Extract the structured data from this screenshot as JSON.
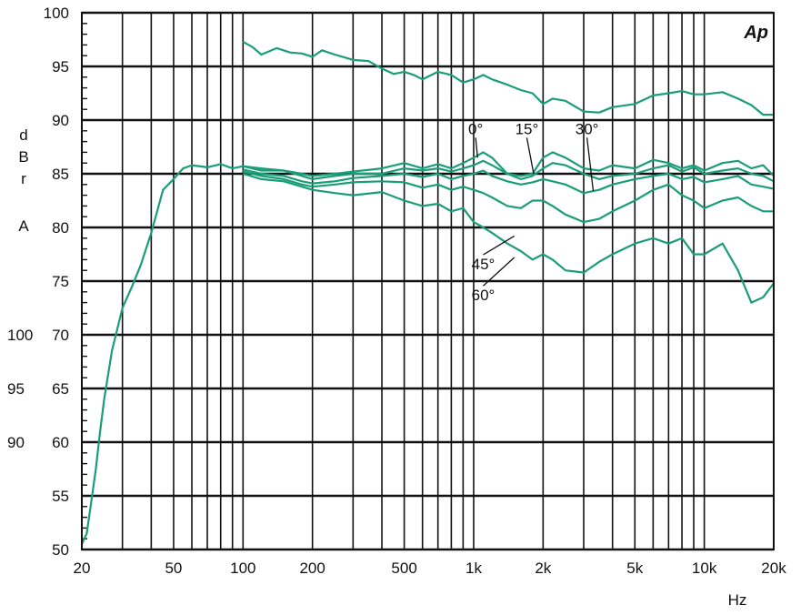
{
  "chart_data": {
    "type": "line",
    "logo_text": "Ap",
    "xlabel": "Hz",
    "ylabel_chars": [
      "d",
      "B",
      "r",
      "A"
    ],
    "x_scale": "log",
    "xlim": [
      20,
      20000
    ],
    "ylim": [
      50,
      100
    ],
    "grid": true,
    "x_tick_values": [
      20,
      50,
      100,
      200,
      500,
      1000,
      2000,
      5000,
      10000,
      20000
    ],
    "x_tick_labels": [
      "20",
      "50",
      "100",
      "200",
      "500",
      "1k",
      "2k",
      "5k",
      "10k",
      "20k"
    ],
    "y_tick_values": [
      50,
      55,
      60,
      65,
      70,
      75,
      80,
      85,
      90,
      95,
      100
    ],
    "y_tick_labels": [
      "50",
      "55",
      "60",
      "65",
      "70",
      "75",
      "80",
      "85",
      "90",
      "95",
      "100"
    ],
    "secondary_y_tick_values": [
      60,
      65,
      70
    ],
    "secondary_y_tick_labels": [
      "90",
      "95",
      "100"
    ],
    "color": "#1a9e78",
    "annotations": [
      {
        "text": "0°",
        "x": 1020,
        "y": 88.7
      },
      {
        "text": "15°",
        "x": 1700,
        "y": 88.7
      },
      {
        "text": "30°",
        "x": 3100,
        "y": 88.7
      },
      {
        "text": "45°",
        "x": 1100,
        "y": 76.1
      },
      {
        "text": "60°",
        "x": 1100,
        "y": 73.2
      }
    ],
    "series": [
      {
        "name": "0°",
        "x": [
          20,
          21,
          22,
          23,
          24,
          25,
          27,
          30,
          33,
          36,
          40,
          45,
          50,
          55,
          60,
          70,
          80,
          90,
          100,
          120,
          150,
          180,
          200,
          250,
          300,
          400,
          500,
          600,
          700,
          800,
          900,
          1000,
          1100,
          1200,
          1400,
          1600,
          1800,
          2000,
          2200,
          2500,
          3000,
          3500,
          4000,
          5000,
          6000,
          7000,
          8000,
          9000,
          10000,
          12000,
          14000,
          16000,
          18000,
          20000
        ],
        "y": [
          50.5,
          51.5,
          54.5,
          57.5,
          61,
          64,
          68.5,
          72.5,
          74.5,
          76.5,
          79.5,
          83.5,
          84.5,
          85.5,
          85.8,
          85.6,
          85.9,
          85.5,
          85.7,
          85.5,
          85.3,
          85,
          84.8,
          85,
          85.2,
          85.5,
          86,
          85.5,
          85.9,
          85.5,
          86,
          86.5,
          87,
          86.5,
          85,
          84.8,
          85,
          86.5,
          87,
          86.5,
          85.5,
          85.3,
          85.8,
          85.5,
          86.3,
          86,
          85.5,
          85.8,
          85.3,
          86,
          86.2,
          85.5,
          85.8,
          84.8
        ]
      },
      {
        "name": "15°",
        "x": [
          100,
          120,
          150,
          180,
          200,
          250,
          300,
          400,
          500,
          600,
          700,
          800,
          900,
          1000,
          1100,
          1200,
          1400,
          1600,
          1800,
          2000,
          2200,
          2500,
          3000,
          3500,
          4000,
          5000,
          6000,
          7000,
          8000,
          9000,
          10000,
          12000,
          14000,
          16000,
          18000,
          20000
        ],
        "y": [
          85.7,
          85.3,
          85.3,
          84.8,
          84.5,
          84.8,
          85,
          85,
          85.5,
          85.3,
          85.5,
          85.2,
          85.5,
          85.8,
          86.2,
          85.8,
          85,
          84.5,
          84.8,
          85.5,
          86,
          85.8,
          85,
          84.5,
          84.8,
          85,
          85.5,
          85.8,
          85.2,
          85.6,
          85,
          85.3,
          85.5,
          85,
          84.8,
          84.3
        ]
      },
      {
        "name": "30°",
        "x": [
          100,
          120,
          150,
          180,
          200,
          250,
          300,
          400,
          500,
          600,
          700,
          800,
          900,
          1000,
          1100,
          1200,
          1400,
          1600,
          1800,
          2000,
          2200,
          2500,
          3000,
          3500,
          4000,
          5000,
          6000,
          7000,
          8000,
          9000,
          10000,
          12000,
          14000,
          16000,
          18000,
          20000
        ],
        "y": [
          85.4,
          85,
          84.8,
          84.3,
          84.1,
          84.3,
          84.6,
          84.8,
          85,
          84.7,
          85,
          84.5,
          84.8,
          85,
          85.3,
          84.8,
          84.3,
          84,
          84.2,
          84.5,
          84.3,
          84,
          83.2,
          83.5,
          84,
          84.5,
          84.8,
          85,
          84.5,
          84.7,
          84.2,
          84.5,
          84.8,
          84,
          83.8,
          83.6
        ]
      },
      {
        "name": "45°",
        "x": [
          100,
          120,
          150,
          180,
          200,
          250,
          300,
          400,
          500,
          600,
          700,
          800,
          900,
          1000,
          1100,
          1200,
          1400,
          1600,
          1800,
          2000,
          2200,
          2500,
          3000,
          3500,
          4000,
          5000,
          6000,
          7000,
          8000,
          9000,
          10000,
          12000,
          14000,
          16000,
          18000,
          20000
        ],
        "y": [
          85.2,
          84.8,
          84.5,
          84,
          83.8,
          84,
          84.2,
          84.3,
          84.2,
          83.7,
          84,
          83.5,
          83.8,
          83.5,
          83.2,
          82.8,
          82,
          81.8,
          82.5,
          82.5,
          82,
          81.2,
          80.5,
          80.8,
          81.5,
          82.5,
          83.5,
          84,
          83,
          82.5,
          81.8,
          82.5,
          82.8,
          82,
          81.5,
          81.5
        ]
      },
      {
        "name": "60°",
        "x": [
          100,
          120,
          150,
          180,
          200,
          250,
          300,
          400,
          500,
          600,
          700,
          800,
          900,
          1000,
          1100,
          1200,
          1400,
          1600,
          1800,
          2000,
          2200,
          2500,
          3000,
          3500,
          4000,
          5000,
          6000,
          7000,
          8000,
          9000,
          10000,
          12000,
          14000,
          16000,
          18000,
          20000
        ],
        "y": [
          85,
          84.5,
          84.3,
          83.8,
          83.5,
          83.2,
          83,
          83.3,
          82.5,
          82,
          82.2,
          81.5,
          81.8,
          80.5,
          80,
          79.5,
          78.5,
          77.8,
          77,
          77.5,
          77,
          76,
          75.8,
          76.8,
          77.5,
          78.5,
          79,
          78.5,
          79,
          77.5,
          77.5,
          78.5,
          76,
          73,
          73.5,
          74.8
        ]
      },
      {
        "name": "",
        "x": [
          100,
          110,
          120,
          140,
          160,
          180,
          200,
          220,
          250,
          280,
          300,
          350,
          400,
          450,
          500,
          550,
          600,
          700,
          800,
          900,
          1000,
          1100,
          1200,
          1400,
          1600,
          1800,
          2000,
          2200,
          2500,
          3000,
          3500,
          4000,
          5000,
          6000,
          7000,
          8000,
          9000,
          10000,
          12000,
          14000,
          16000,
          18000,
          20000
        ],
        "y": [
          97.3,
          96.8,
          96.1,
          96.7,
          96.3,
          96.2,
          95.9,
          96.5,
          96.1,
          95.8,
          95.6,
          95.5,
          94.8,
          94.3,
          94.5,
          94.2,
          93.8,
          94.5,
          94.2,
          93.5,
          93.8,
          94.2,
          93.8,
          93.3,
          92.8,
          92.5,
          91.5,
          92,
          91.8,
          90.8,
          90.7,
          91.2,
          91.5,
          92.3,
          92.5,
          92.7,
          92.4,
          92.4,
          92.6,
          92,
          91.4,
          90.5,
          90.5
        ]
      }
    ]
  }
}
